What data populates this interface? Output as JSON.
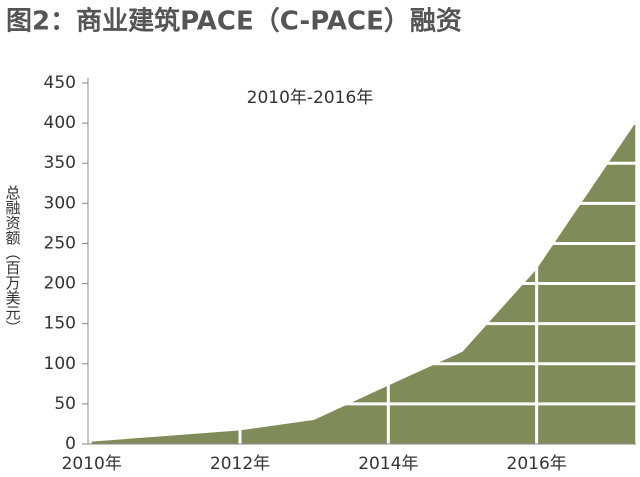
{
  "chart_data": {
    "type": "area",
    "title": "图2：商业建筑PACE（C-PACE）融资",
    "subtitle": "2010年-2016年",
    "y_label": "总融资额（百万美元）",
    "x": [
      2010,
      2011,
      2012,
      2013,
      2014,
      2015,
      2016,
      2017.33
    ],
    "values": [
      3,
      10,
      17,
      30,
      73,
      115,
      218,
      400
    ],
    "color": "#7f8c5a",
    "xlim": [
      2009.95,
      2017.34
    ],
    "xticks": [
      {
        "value": 2010,
        "label": "2010年"
      },
      {
        "value": 2012,
        "label": "2012年"
      },
      {
        "value": 2014,
        "label": "2014年"
      },
      {
        "value": 2016,
        "label": "2016年"
      }
    ],
    "ylim": [
      0,
      450
    ],
    "yticks": [
      0,
      50,
      100,
      150,
      200,
      250,
      300,
      350,
      400,
      450
    ],
    "grid": true
  }
}
